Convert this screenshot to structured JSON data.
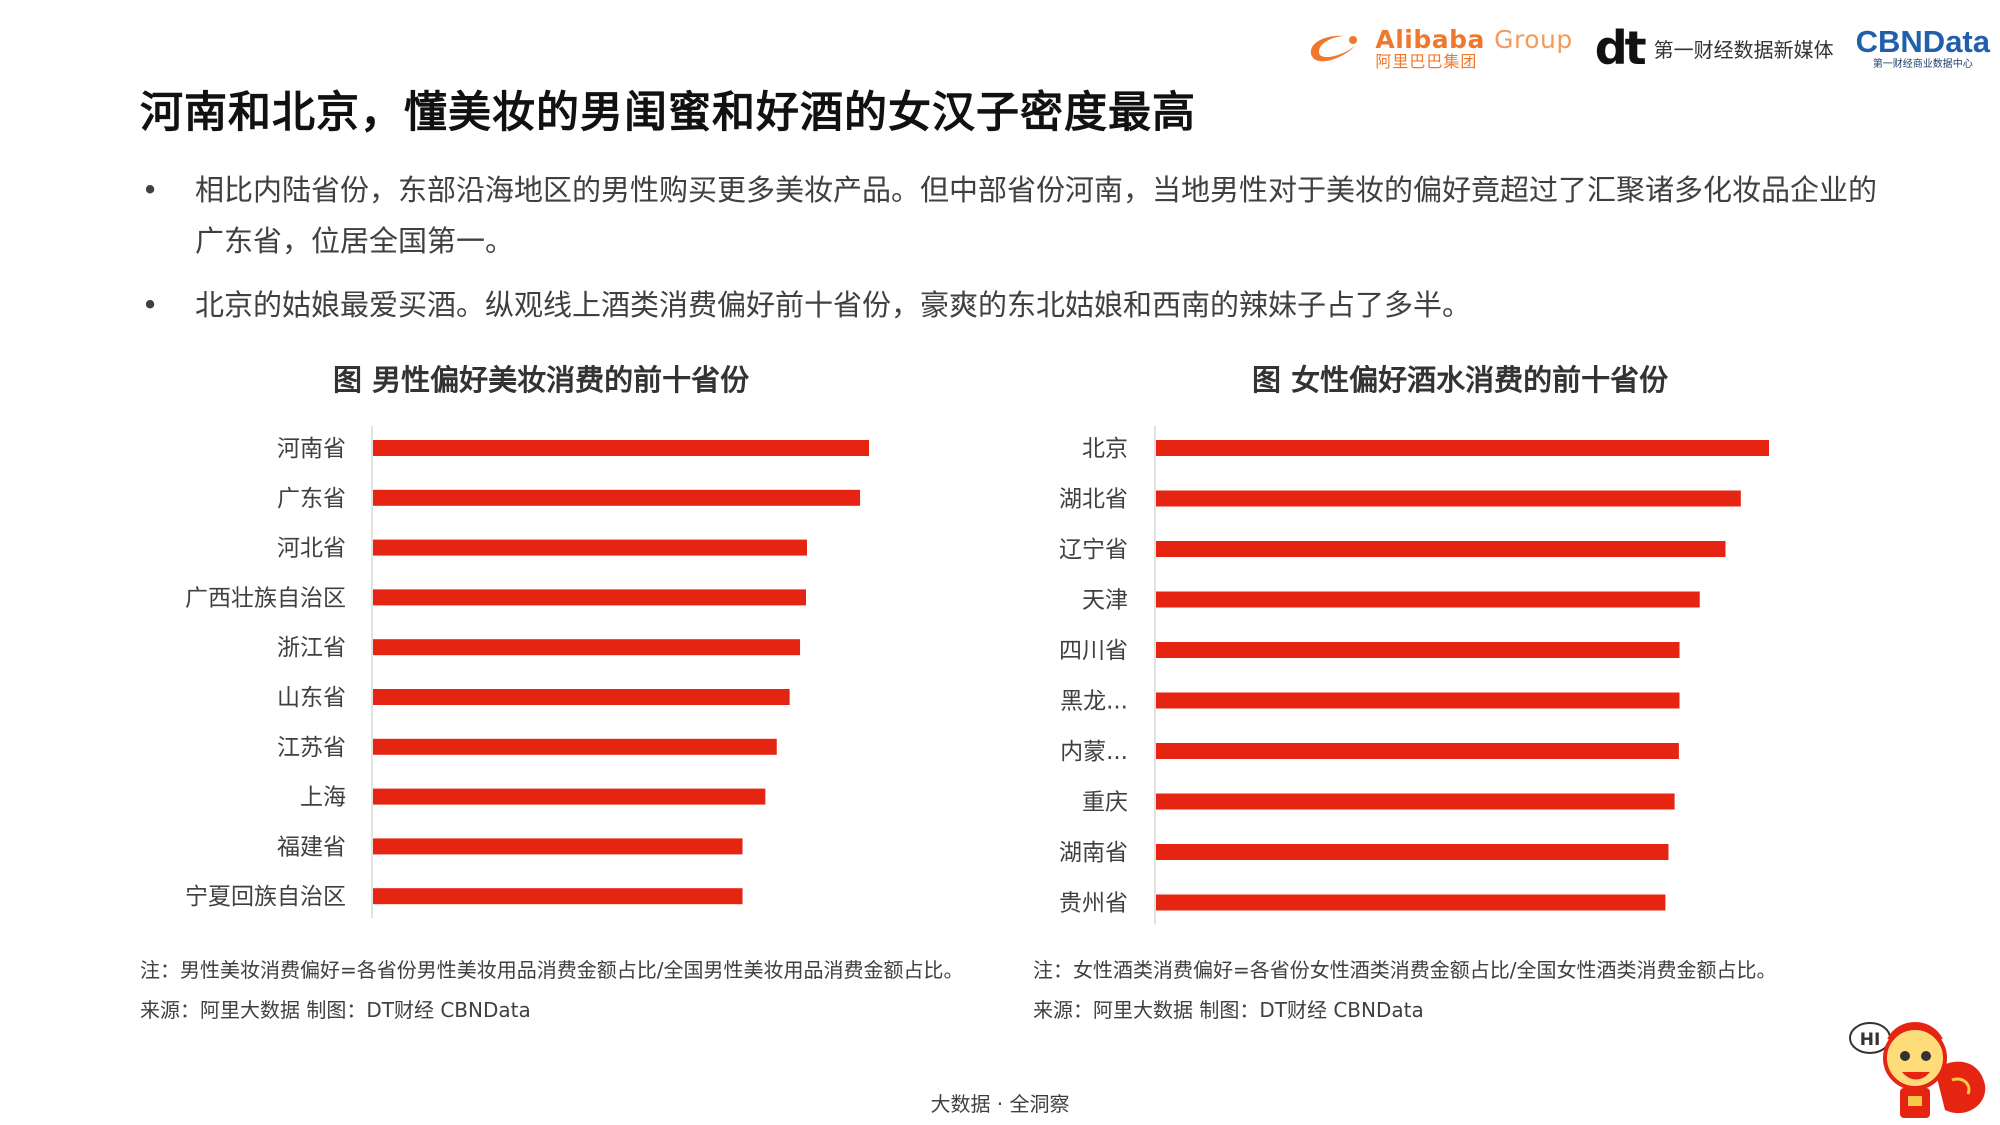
{
  "header": {
    "alibaba_en": "Alibaba",
    "alibaba_group": "Group",
    "alibaba_cn": "阿里巴巴集团",
    "dt_mark": "dt",
    "dt_text": "第一财经数据新媒体",
    "cbn_mark": "CBNData",
    "cbn_sub": "第一财经商业数据中心"
  },
  "title": "河南和北京，懂美妆的男闺蜜和好酒的女汉子密度最高",
  "bullets": [
    "相比内陆省份，东部沿海地区的男性购买更多美妆产品。但中部省份河南，当地男性对于美妆的偏好竟超过了汇聚诸多化妆品企业的广东省，位居全国第一。",
    "北京的姑娘最爱买酒。纵观线上酒类消费偏好前十省份，豪爽的东北姑娘和西南的辣妹子占了多半。"
  ],
  "bullet_symbol": "•",
  "chart_data": [
    {
      "type": "bar",
      "orientation": "horizontal",
      "title": "图 男性偏好美妆消费的前十省份",
      "categories": [
        "河南省",
        "广东省",
        "河北省",
        "广西壮族自治区",
        "浙江省",
        "山东省",
        "江苏省",
        "上海",
        "福建省",
        "宁夏回族自治区"
      ],
      "values": [
        100,
        98.2,
        87.5,
        87.3,
        86.1,
        84,
        81.4,
        79.1,
        74.5,
        74.5
      ],
      "xlim": [
        0,
        100
      ],
      "color": "#e52412",
      "note": "注：男性美妆消费偏好=各省份男性美妆用品消费金额占比/全国男性美妆用品消费金额占比。",
      "source": "来源：阿里大数据    制图：DT财经    CBNData"
    },
    {
      "type": "bar",
      "orientation": "horizontal",
      "title": "图 女性偏好酒水消费的前十省份",
      "categories": [
        "北京",
        "湖北省",
        "辽宁省",
        "天津",
        "四川省",
        "黑龙...",
        "内蒙...",
        "重庆",
        "湖南省",
        "贵州省"
      ],
      "values": [
        100,
        95.4,
        92.9,
        88.7,
        85.4,
        85.4,
        85.3,
        84.6,
        83.6,
        83.1
      ],
      "xlim": [
        0,
        100
      ],
      "color": "#e52412",
      "note": "注：女性酒类消费偏好=各省份女性酒类消费金额占比/全国女性酒类消费金额占比。",
      "source": "来源：阿里大数据    制图：DT财经    CBNData"
    }
  ],
  "footer": "大数据 · 全洞察",
  "mascot": {
    "greeting": "HI",
    "icon": "lion-dance-mascot-icon"
  }
}
